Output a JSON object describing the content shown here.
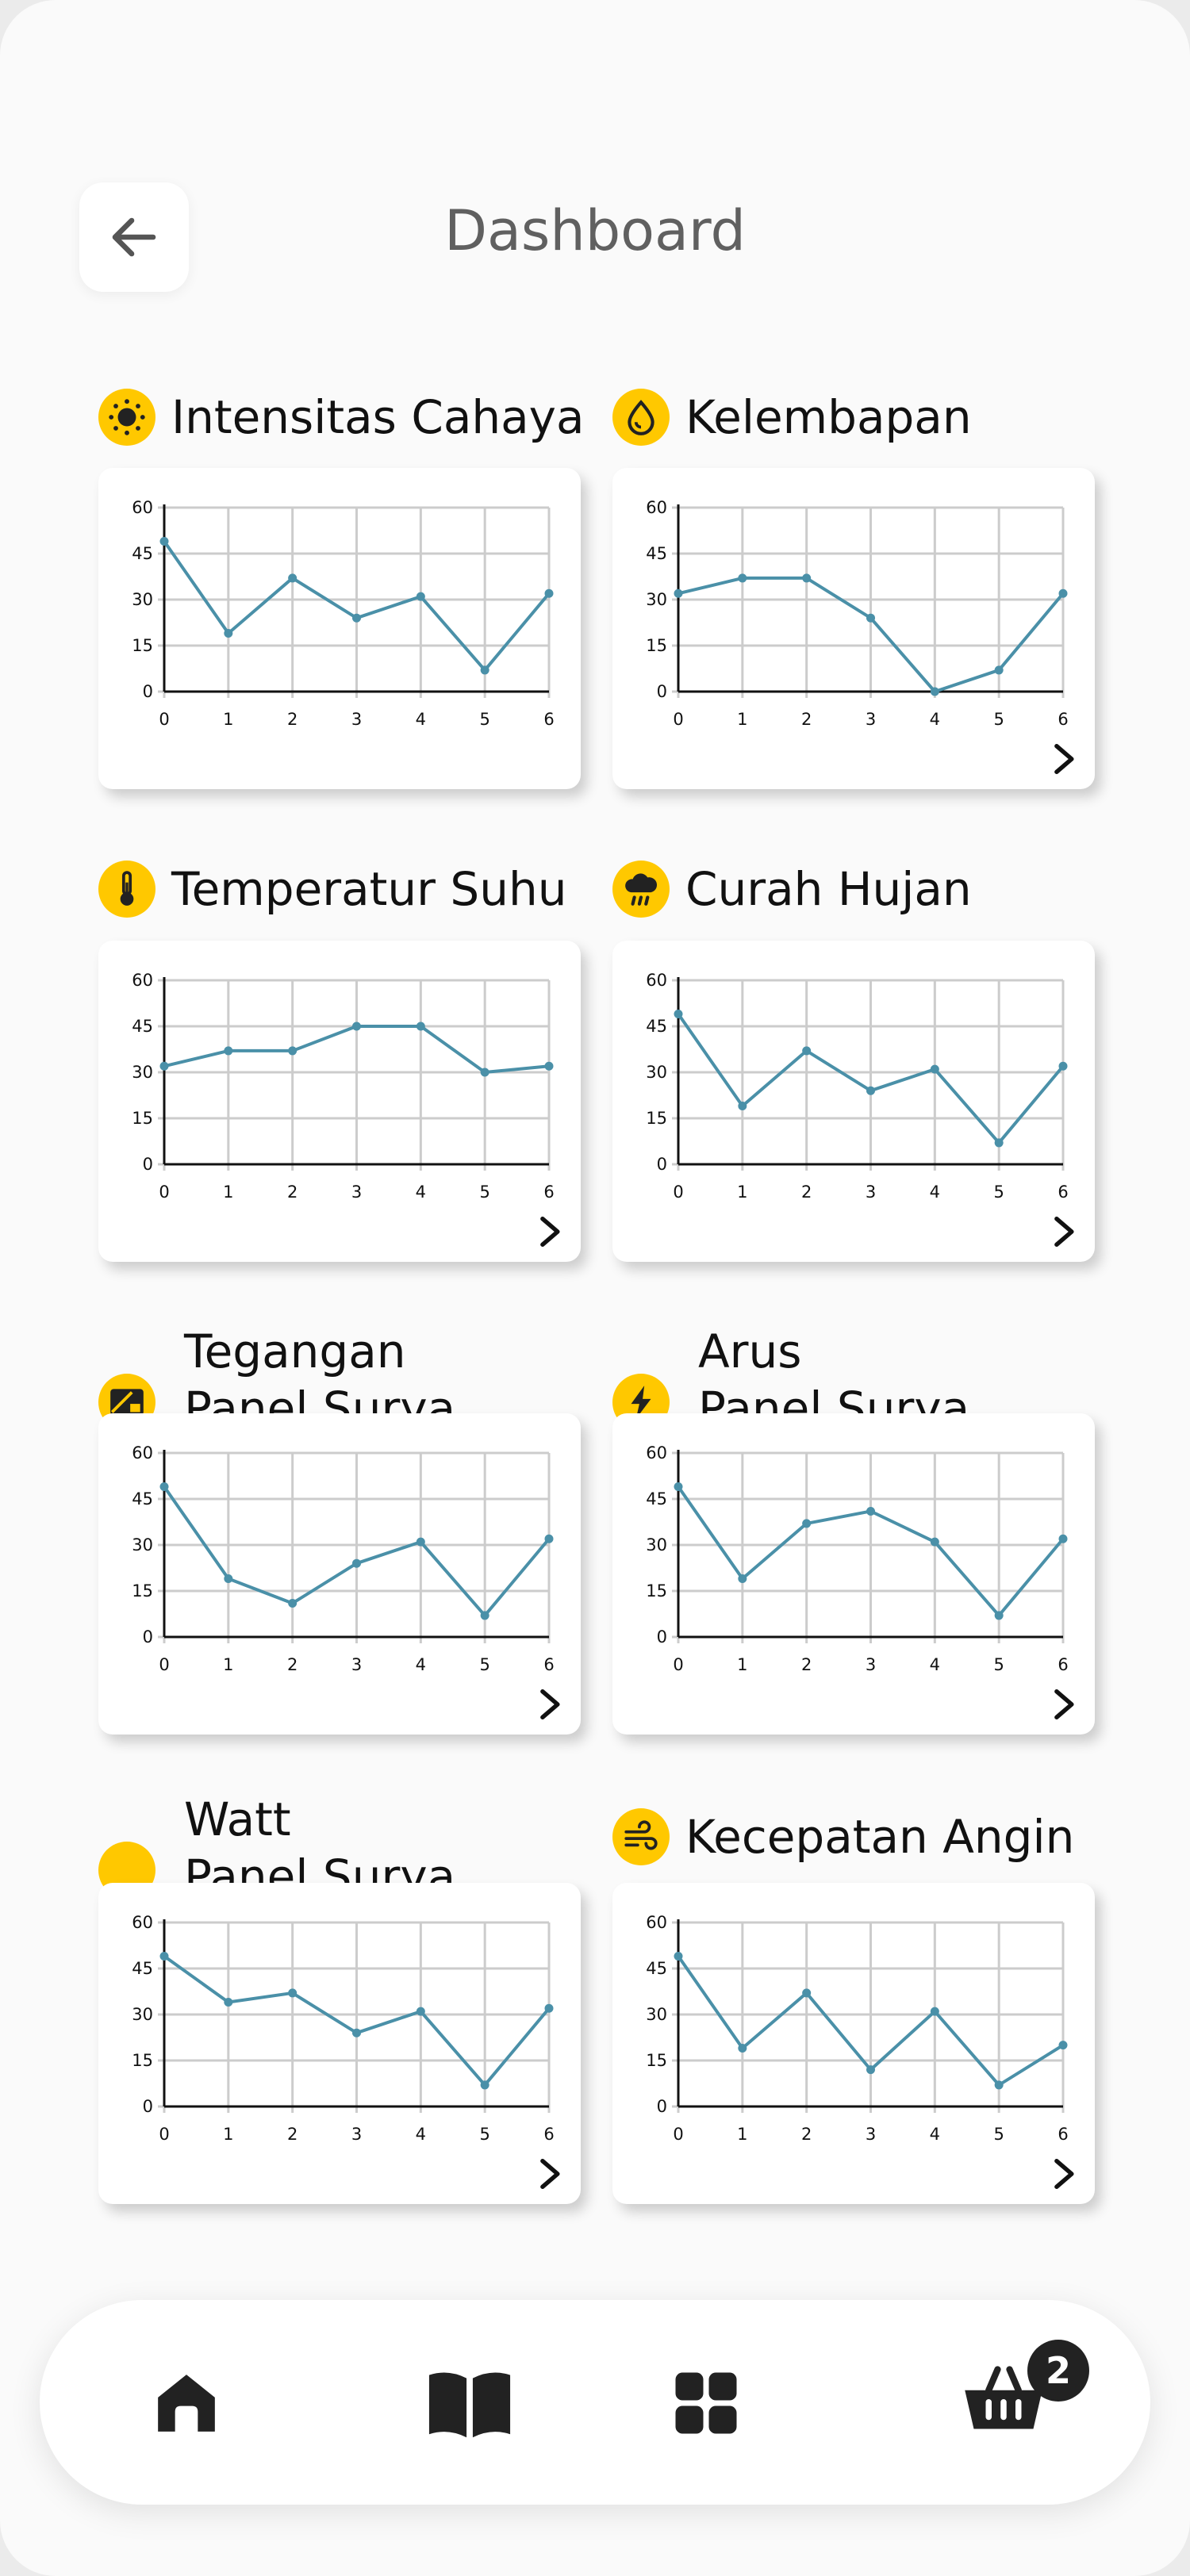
{
  "header": {
    "title": "Dashboard"
  },
  "axis": {
    "xticks": [
      "0",
      "1",
      "2",
      "3",
      "4",
      "5",
      "6"
    ],
    "yticks": [
      "0",
      "15",
      "30",
      "45",
      "60"
    ]
  },
  "colors": {
    "accent": "#ffc800",
    "line": "#4a90a8",
    "grid": "#cccccc",
    "icon_dark": "#222222"
  },
  "sections": [
    {
      "id": "intensitas-cahaya",
      "title_lines": [
        "Intensitas Cahaya"
      ],
      "icon": "sun-icon",
      "arrow": false
    },
    {
      "id": "kelembapan",
      "title_lines": [
        "Kelembapan"
      ],
      "icon": "droplet-icon",
      "arrow": true
    },
    {
      "id": "temperatur-suhu",
      "title_lines": [
        "Temperatur Suhu"
      ],
      "icon": "thermometer-icon",
      "arrow": true
    },
    {
      "id": "curah-hujan",
      "title_lines": [
        "Curah Hujan"
      ],
      "icon": "rain-cloud-icon",
      "arrow": true
    },
    {
      "id": "tegangan-panel-surya",
      "title_lines": [
        "Tegangan",
        "Panel Surya"
      ],
      "icon": "solar-panel-icon",
      "arrow": true
    },
    {
      "id": "arus-panel-surya",
      "title_lines": [
        "Arus",
        "Panel Surya"
      ],
      "icon": "lightning-icon",
      "arrow": true
    },
    {
      "id": "watt-panel-surya",
      "title_lines": [
        "Watt",
        "Panel Surya"
      ],
      "icon": "blank-icon",
      "arrow": true
    },
    {
      "id": "kecepatan-angin",
      "title_lines": [
        "Kecepatan Angin"
      ],
      "icon": "wind-icon",
      "arrow": true
    }
  ],
  "chart_data": [
    {
      "type": "line",
      "name": "",
      "x": [
        0,
        1,
        2,
        3,
        4,
        5,
        6
      ],
      "y": [
        49,
        19,
        37,
        24,
        31,
        7,
        32
      ],
      "xlim": [
        0,
        6
      ],
      "ylim": [
        0,
        60
      ],
      "grid": true
    },
    {
      "type": "line",
      "name": "",
      "x": [
        0,
        1,
        2,
        3,
        4,
        5,
        6
      ],
      "y": [
        32,
        37,
        37,
        24,
        0,
        7,
        32
      ],
      "xlim": [
        0,
        6
      ],
      "ylim": [
        0,
        60
      ],
      "grid": true
    },
    {
      "type": "line",
      "name": "",
      "x": [
        0,
        1,
        2,
        3,
        4,
        5,
        6
      ],
      "y": [
        32,
        37,
        37,
        45,
        45,
        30,
        32
      ],
      "xlim": [
        0,
        6
      ],
      "ylim": [
        0,
        60
      ],
      "grid": true
    },
    {
      "type": "line",
      "name": "",
      "x": [
        0,
        1,
        2,
        3,
        4,
        5,
        6
      ],
      "y": [
        49,
        19,
        37,
        24,
        31,
        7,
        32
      ],
      "xlim": [
        0,
        6
      ],
      "ylim": [
        0,
        60
      ],
      "grid": true
    },
    {
      "type": "line",
      "name": "",
      "x": [
        0,
        1,
        2,
        3,
        4,
        5,
        6
      ],
      "y": [
        49,
        19,
        11,
        24,
        31,
        7,
        32
      ],
      "xlim": [
        0,
        6
      ],
      "ylim": [
        0,
        60
      ],
      "grid": true
    },
    {
      "type": "line",
      "name": "",
      "x": [
        0,
        1,
        2,
        3,
        4,
        5,
        6
      ],
      "y": [
        49,
        19,
        37,
        41,
        31,
        7,
        32
      ],
      "xlim": [
        0,
        6
      ],
      "ylim": [
        0,
        60
      ],
      "grid": true
    },
    {
      "type": "line",
      "name": "",
      "x": [
        0,
        1,
        2,
        3,
        4,
        5,
        6
      ],
      "y": [
        49,
        34,
        37,
        24,
        31,
        7,
        32
      ],
      "xlim": [
        0,
        6
      ],
      "ylim": [
        0,
        60
      ],
      "grid": true
    },
    {
      "type": "line",
      "name": "",
      "x": [
        0,
        1,
        2,
        3,
        4,
        5,
        6
      ],
      "y": [
        49,
        19,
        37,
        12,
        31,
        7,
        20
      ],
      "xlim": [
        0,
        6
      ],
      "ylim": [
        0,
        60
      ],
      "grid": true
    }
  ],
  "nav": {
    "items": [
      {
        "name": "nav-home",
        "icon": "home-icon"
      },
      {
        "name": "nav-book",
        "icon": "book-icon"
      },
      {
        "name": "nav-apps",
        "icon": "grid-icon"
      },
      {
        "name": "nav-basket",
        "icon": "basket-icon"
      }
    ],
    "basket_count": "2"
  }
}
